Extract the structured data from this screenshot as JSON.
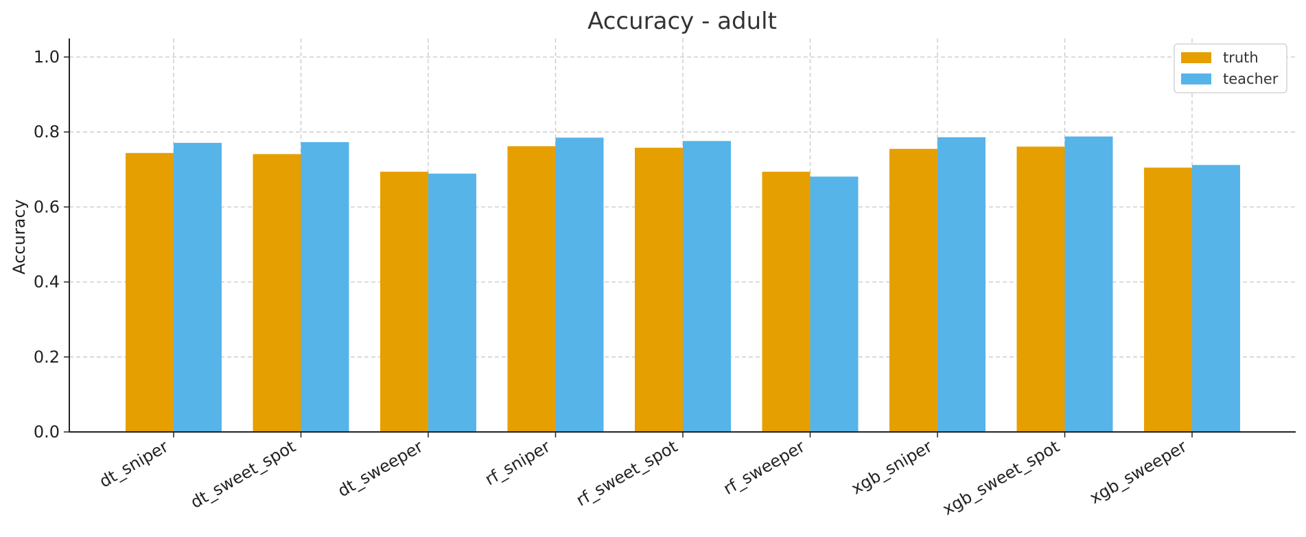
{
  "chart_data": {
    "type": "bar",
    "title": "Accuracy - adult",
    "xlabel": "",
    "ylabel": "Accuracy",
    "ylim": [
      0,
      1.05
    ],
    "yticks": [
      0.0,
      0.2,
      0.4,
      0.6,
      0.8,
      1.0
    ],
    "ytick_labels": [
      "0.0",
      "0.2",
      "0.4",
      "0.6",
      "0.8",
      "1.0"
    ],
    "grid": true,
    "legend_position": "top-right",
    "categories": [
      "dt_sniper",
      "dt_sweet_spot",
      "dt_sweeper",
      "rf_sniper",
      "rf_sweet_spot",
      "rf_sweeper",
      "xgb_sniper",
      "xgb_sweet_spot",
      "xgb_sweeper"
    ],
    "series": [
      {
        "name": "truth",
        "color": "#E69F00",
        "values": [
          0.744,
          0.741,
          0.694,
          0.762,
          0.758,
          0.694,
          0.755,
          0.761,
          0.705
        ]
      },
      {
        "name": "teacher",
        "color": "#56B4E9",
        "values": [
          0.771,
          0.773,
          0.689,
          0.785,
          0.776,
          0.681,
          0.786,
          0.788,
          0.712
        ]
      }
    ]
  }
}
